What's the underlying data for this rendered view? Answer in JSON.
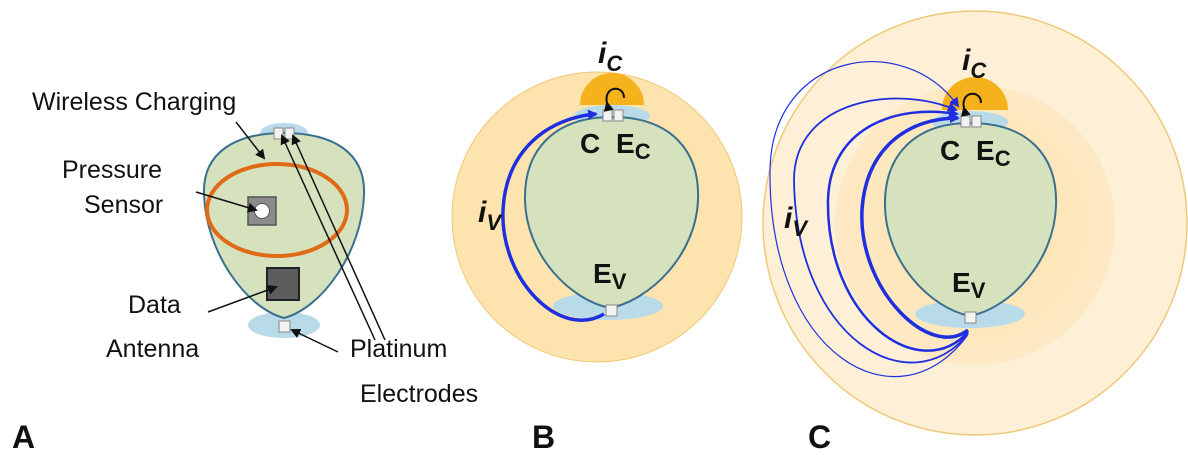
{
  "panels": {
    "a": {
      "letter": "A",
      "labels": {
        "wireless_charging": "Wireless Charging",
        "pressure": "Pressure",
        "sensor": "Sensor",
        "data": "Data",
        "antenna": "Antenna",
        "platinum": "Platinum",
        "electrodes": "Electrodes"
      }
    },
    "b": {
      "letter": "B",
      "node_c": "C",
      "node_ec_main": "E",
      "node_ec_sub": "C",
      "node_ev_main": "E",
      "node_ev_sub": "V",
      "ic_main": "i",
      "ic_sub": "C",
      "iv_main": "i",
      "iv_sub": "V"
    },
    "c": {
      "letter": "C",
      "node_c": "C",
      "node_ec_main": "E",
      "node_ec_sub": "C",
      "node_ev_main": "E",
      "node_ev_sub": "V",
      "ic_main": "i",
      "ic_sub": "C",
      "iv_main": "i",
      "iv_sub": "V"
    }
  },
  "colors": {
    "device_fill": "#d6e2bd",
    "device_stroke": "#3a6f8f",
    "bump": "#b9dbe9",
    "coil": "#e06a17",
    "field_outer": "#fdf0d6",
    "field_mid": "#fde1a8",
    "field_hot": "#f5b21c",
    "current": "#1f2fe0"
  }
}
